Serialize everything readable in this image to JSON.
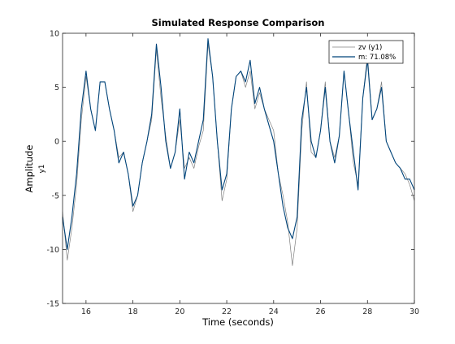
{
  "chart_data": {
    "type": "line",
    "title": "Simulated Response Comparison",
    "xlabel": "Time (seconds)",
    "ylabel": "Amplitude",
    "channel_label": "y1",
    "xlim": [
      15,
      30
    ],
    "ylim": [
      -15,
      10
    ],
    "xticks": [
      16,
      18,
      20,
      22,
      24,
      26,
      28,
      30
    ],
    "yticks": [
      -15,
      -10,
      -5,
      0,
      5,
      10
    ],
    "grid": false,
    "legend_position": "top-right",
    "colors": {
      "measured": "#808080",
      "model": "#00447a"
    },
    "series": [
      {
        "name": "zv (y1)",
        "x": [
          15,
          15.2,
          15.4,
          15.6,
          15.8,
          16,
          16.2,
          16.4,
          16.6,
          16.8,
          17,
          17.2,
          17.4,
          17.6,
          17.8,
          18,
          18.2,
          18.4,
          18.6,
          18.8,
          19,
          19.2,
          19.4,
          19.6,
          19.8,
          20,
          20.2,
          20.4,
          20.6,
          20.8,
          21,
          21.2,
          21.4,
          21.6,
          21.8,
          22,
          22.2,
          22.4,
          22.6,
          22.8,
          23,
          23.2,
          23.4,
          23.6,
          23.8,
          24,
          24.2,
          24.4,
          24.6,
          24.8,
          25,
          25.2,
          25.4,
          25.6,
          25.8,
          26,
          26.2,
          26.4,
          26.6,
          26.8,
          27,
          27.2,
          27.4,
          27.6,
          27.8,
          28,
          28.2,
          28.4,
          28.6,
          28.8,
          29,
          29.2,
          29.4,
          29.6,
          29.8,
          30
        ],
        "values": [
          -6.5,
          -11,
          -8,
          -4,
          2,
          6,
          3,
          1,
          5.5,
          5.5,
          3,
          1,
          -1.5,
          -1,
          -3,
          -6.5,
          -5,
          -2,
          0,
          2,
          8.5,
          4,
          0.5,
          -2.5,
          -1,
          2,
          -2.5,
          -1.5,
          -2.5,
          -0.5,
          1,
          9,
          6,
          0,
          -5.5,
          -3.5,
          3,
          6,
          6.5,
          5,
          6.5,
          3,
          4.5,
          3,
          2,
          1,
          -3,
          -5,
          -7.5,
          -11.5,
          -8,
          1,
          5.5,
          -1,
          -1.5,
          1,
          5.5,
          0,
          -1.5,
          0.5,
          6.5,
          2.5,
          -2,
          -4,
          4,
          8,
          2,
          3,
          5.5,
          0,
          -1,
          -2,
          -2.5,
          -3,
          -4,
          -5.5
        ]
      },
      {
        "name": "m: 71.08%",
        "x": [
          15,
          15.2,
          15.4,
          15.6,
          15.8,
          16,
          16.2,
          16.4,
          16.6,
          16.8,
          17,
          17.2,
          17.4,
          17.6,
          17.8,
          18,
          18.2,
          18.4,
          18.6,
          18.8,
          19,
          19.2,
          19.4,
          19.6,
          19.8,
          20,
          20.2,
          20.4,
          20.6,
          20.8,
          21,
          21.2,
          21.4,
          21.6,
          21.8,
          22,
          22.2,
          22.4,
          22.6,
          22.8,
          23,
          23.2,
          23.4,
          23.6,
          23.8,
          24,
          24.2,
          24.4,
          24.6,
          24.8,
          25,
          25.2,
          25.4,
          25.6,
          25.8,
          26,
          26.2,
          26.4,
          26.6,
          26.8,
          27,
          27.2,
          27.4,
          27.6,
          27.8,
          28,
          28.2,
          28.4,
          28.6,
          28.8,
          29,
          29.2,
          29.4,
          29.6,
          29.8,
          30
        ],
        "values": [
          -7,
          -10,
          -7,
          -3,
          3,
          6.5,
          3,
          1,
          5.5,
          5.5,
          3,
          1,
          -2,
          -1,
          -3,
          -6,
          -5,
          -2,
          0,
          2.5,
          9,
          5,
          0,
          -2.5,
          -1,
          3,
          -3.5,
          -1,
          -2,
          0,
          2,
          9.5,
          6,
          0,
          -4.5,
          -3,
          3,
          6,
          6.5,
          5.5,
          7.5,
          3.5,
          5,
          3,
          1.5,
          0,
          -3,
          -6,
          -8,
          -9,
          -7,
          2,
          5,
          0,
          -1.5,
          1,
          5,
          0,
          -2,
          0.5,
          6.5,
          2.5,
          -1,
          -4.5,
          4,
          7.5,
          2,
          3,
          5,
          0,
          -1,
          -2,
          -2.5,
          -3.5,
          -3.5,
          -4.5
        ]
      }
    ]
  }
}
